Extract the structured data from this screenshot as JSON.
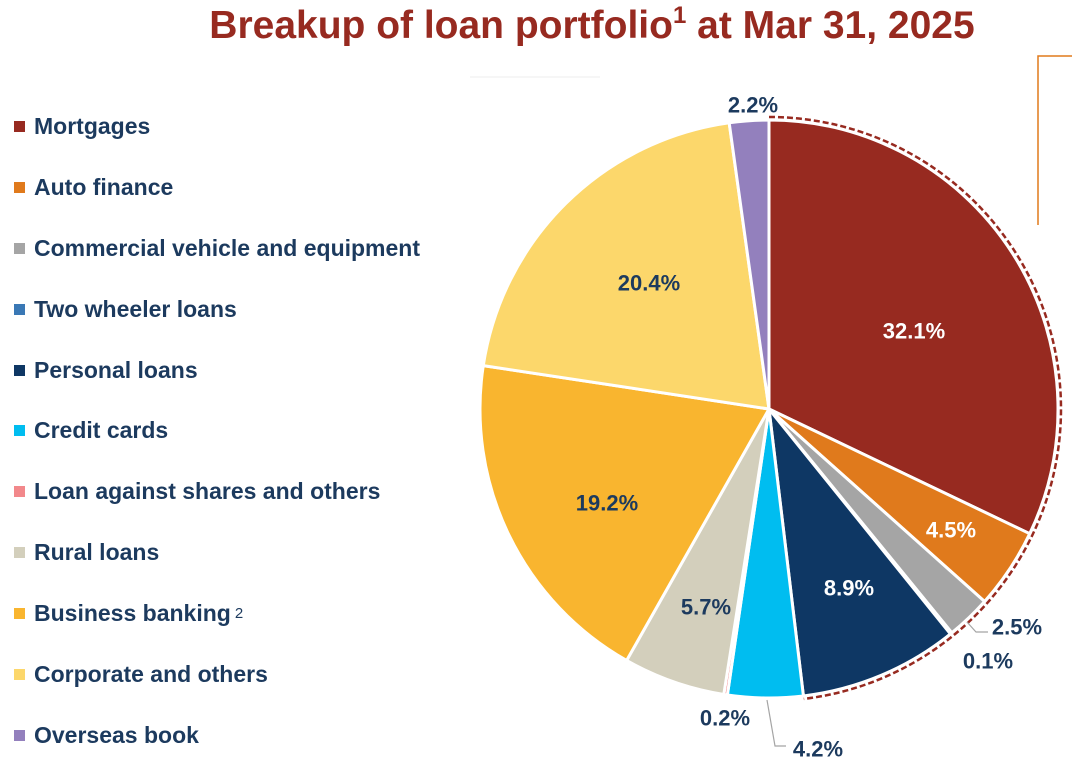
{
  "title": {
    "text": "Breakup of loan portfolio",
    "superscript": "1",
    "suffix": " at Mar 31, 2025"
  },
  "chart_data": {
    "type": "pie",
    "title": "Breakup of loan portfolio¹ at Mar 31, 2025",
    "legend_position": "left",
    "slices": [
      {
        "name": "Mortgages",
        "value": 32.1,
        "label": "32.1%",
        "color": "#972a20"
      },
      {
        "name": "Auto finance",
        "value": 4.5,
        "label": "4.5%",
        "color": "#e07a1c"
      },
      {
        "name": "Commercial vehicle and equipment",
        "value": 2.5,
        "label": "2.5%",
        "color": "#a5a5a5"
      },
      {
        "name": "Two wheeler loans",
        "value": 0.1,
        "label": "0.1%",
        "color": "#3a78b5"
      },
      {
        "name": "Personal loans",
        "value": 8.9,
        "label": "8.9%",
        "color": "#0e3764"
      },
      {
        "name": "Credit cards",
        "value": 4.2,
        "label": "4.2%",
        "color": "#00bdf0"
      },
      {
        "name": "Loan against shares and others",
        "value": 0.2,
        "label": "0.2%",
        "color": "#f2888b"
      },
      {
        "name": "Rural loans",
        "value": 5.7,
        "label": "5.7%",
        "color": "#d3cfbc"
      },
      {
        "name": "Business banking",
        "superscript": "2",
        "value": 19.2,
        "label": "19.2%",
        "color": "#f9b52f"
      },
      {
        "name": "Corporate and others",
        "value": 20.4,
        "label": "20.4%",
        "color": "#fcd76b"
      },
      {
        "name": "Overseas book",
        "value": 2.2,
        "label": "2.2%",
        "color": "#9380bd"
      }
    ]
  }
}
